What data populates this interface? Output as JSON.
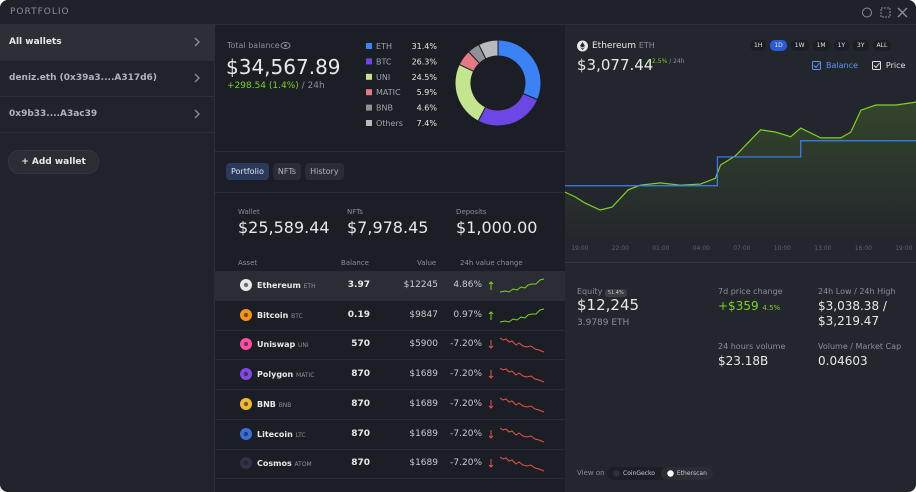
{
  "header": {
    "title": "PORTFOLIO"
  },
  "sidebar": {
    "wallets": [
      "All wallets",
      "deniz.eth (0x39a3....A317d6)",
      "0x9b33....A3ac39"
    ],
    "add_button": "+ Add wallet"
  },
  "balance": {
    "label": "Total balance",
    "amount": "$34,567.89",
    "change": "+298.54 (1.4%)",
    "period": "/ 24h"
  },
  "tabs": [
    "Portfolio",
    "NFTs",
    "History"
  ],
  "summary": [
    {
      "label": "Wallet",
      "value": "$25,589.44"
    },
    {
      "label": "NFTs",
      "value": "$7,978.45"
    },
    {
      "label": "Deposits",
      "value": "$1,000.00"
    }
  ],
  "table": {
    "headers": [
      "Asset",
      "Balance",
      "Value",
      "24h value change"
    ],
    "rows": [
      {
        "name": "Ethereum",
        "symbol": "ETH",
        "balance": 3.97,
        "value": "$12245",
        "change": "4.86%",
        "color": "#e8e8e8"
      },
      {
        "name": "Bitcoin",
        "symbol": "BTC",
        "balance": 0.19,
        "value": "$9847",
        "change": "0.97%",
        "color": "#f7931a"
      },
      {
        "name": "Uniswap",
        "symbol": "UNI",
        "balance": 570,
        "value": "$5900",
        "change": "-7.20%",
        "color": "#ff4fa3"
      },
      {
        "name": "Polygon",
        "symbol": "MATIC",
        "balance": 870,
        "value": "$1689",
        "change": "-7.20%",
        "color": "#8247e5"
      },
      {
        "name": "BNB",
        "symbol": "BNB",
        "balance": 870,
        "value": "$1689",
        "change": "-7.20%",
        "color": "#f3ba2f"
      },
      {
        "name": "Litecoin",
        "symbol": "LTC",
        "balance": 870,
        "value": "$1689",
        "change": "-7.20%",
        "color": "#3a6fd8"
      },
      {
        "name": "Cosmos",
        "symbol": "ATOM",
        "balance": 870,
        "value": "$1689",
        "change": "-7.20%",
        "color": "#2e3148"
      }
    ]
  },
  "asset": {
    "name": "Ethereum",
    "symbol": "ETH",
    "price": "$3,077.44",
    "change": "+2.5%",
    "period": "/ 24h",
    "ranges": [
      "1H",
      "1D",
      "1W",
      "1M",
      "1Y",
      "3Y",
      "ALL"
    ],
    "active_range": "1D",
    "toggles": [
      "Balance",
      "Price"
    ]
  },
  "stats": {
    "equity_label": "Equity",
    "equity_badge": "51.4%",
    "equity": "$12,245",
    "equity_eth": "3.9789 ETH",
    "change_label": "7d price change",
    "change": "+$359",
    "change_pct": "4.5%",
    "range_label": "24h Low / 24h High",
    "low": "$3,038.38 /",
    "high": "$3,219.47",
    "volume_label": "24 hours volume",
    "volume": "$23.18B",
    "ratio_label": "Volume / Market Cap",
    "ratio": "0.04603"
  },
  "links": {
    "label": "View on",
    "items": [
      "CoinGecko",
      "Etherscan"
    ]
  },
  "chart_data": [
    {
      "type": "pie",
      "categories": [
        "ETH",
        "BTC",
        "UNI",
        "MATIC",
        "BNB",
        "Others"
      ],
      "values": [
        31.4,
        26.3,
        24.5,
        5.9,
        4.6,
        7.4
      ],
      "value_labels": [
        "31.4%",
        "26.3%",
        "24.5%",
        "5.9%",
        "4.6%",
        "7.4%"
      ],
      "colors": [
        "#3b82f6",
        "#6c47e6",
        "#c5e48e",
        "#e57a86",
        "#8e9196",
        "#b8babd"
      ]
    },
    {
      "type": "line",
      "xlim": [
        -1.1,
        24.9
      ],
      "ylim": [
        2980,
        3240
      ],
      "xticks": [
        {
          "value": 0,
          "label": "19:00"
        },
        {
          "value": 3,
          "label": "22:00"
        },
        {
          "value": 6,
          "label": "01:00"
        },
        {
          "value": 9,
          "label": "04:00"
        },
        {
          "value": 12,
          "label": "07:00"
        },
        {
          "value": 15,
          "label": "10:00"
        },
        {
          "value": 18,
          "label": "13:00"
        },
        {
          "value": 21,
          "label": "16:00"
        },
        {
          "value": 24,
          "label": "19:00"
        }
      ],
      "series": [
        {
          "name": "Price",
          "color": "#7ed321",
          "x": [
            -1.1,
            -0.36,
            0.39,
            1.5,
            2.39,
            3.58,
            4.47,
            5.96,
            7.44,
            8.93,
            10.04,
            10.42,
            11.53,
            12.64,
            13.39,
            14.5,
            15.62,
            16.36,
            17.85,
            19.33,
            20.07,
            20.82,
            21.93,
            23.42,
            24.9
          ],
          "values": [
            3063,
            3055,
            3044,
            3032,
            3037,
            3067,
            3075,
            3079,
            3075,
            3077,
            3087,
            3110,
            3126,
            3153,
            3171,
            3167,
            3159,
            3174,
            3157,
            3157,
            3167,
            3205,
            3214,
            3214,
            3219
          ]
        },
        {
          "name": "Balance",
          "color": "#3b82f6",
          "x": [
            -1.1,
            10.19,
            10.19,
            16.36,
            16.36,
            24.9
          ],
          "values": [
            3074,
            3074,
            3124,
            3124,
            3152,
            3152
          ]
        }
      ]
    }
  ]
}
